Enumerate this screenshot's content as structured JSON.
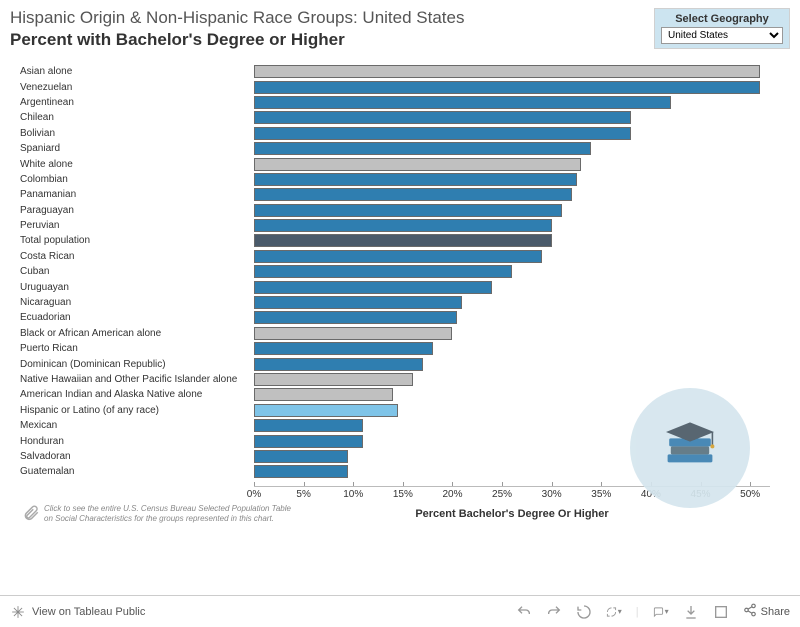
{
  "title_line1": "Hispanic Origin & Non-Hispanic Race Groups: United States",
  "title_line2": "Percent with Bachelor's Degree or Higher",
  "geography": {
    "label": "Select Geography",
    "selected": "United States"
  },
  "chart": {
    "type": "bar",
    "xlabel": "Percent Bachelor's Degree Or Higher",
    "xlim": [
      0,
      52
    ],
    "ticks": [
      0,
      5,
      10,
      15,
      20,
      25,
      30,
      35,
      40,
      45,
      50
    ],
    "tick_labels": [
      "0%",
      "5%",
      "10%",
      "15%",
      "20%",
      "25%",
      "30%",
      "35%",
      "40%",
      "45%",
      "50%"
    ],
    "bar_border": "#6a6a6a",
    "colors": {
      "hispanic": "#2f7eb0",
      "nonhispanic": "#c0c0c0",
      "total": "#4a5a6a",
      "hispanic_any": "#7fc4e8"
    },
    "background": "#ffffff",
    "label_fontsize": 10,
    "tick_fontsize": 10,
    "rows": [
      {
        "label": "Asian alone",
        "value": 51,
        "kind": "nonhispanic"
      },
      {
        "label": "Venezuelan",
        "value": 51,
        "kind": "hispanic"
      },
      {
        "label": "Argentinean",
        "value": 42,
        "kind": "hispanic"
      },
      {
        "label": "Chilean",
        "value": 38,
        "kind": "hispanic"
      },
      {
        "label": "Bolivian",
        "value": 38,
        "kind": "hispanic"
      },
      {
        "label": "Spaniard",
        "value": 34,
        "kind": "hispanic"
      },
      {
        "label": "White alone",
        "value": 33,
        "kind": "nonhispanic"
      },
      {
        "label": "Colombian",
        "value": 32.5,
        "kind": "hispanic"
      },
      {
        "label": "Panamanian",
        "value": 32,
        "kind": "hispanic"
      },
      {
        "label": "Paraguayan",
        "value": 31,
        "kind": "hispanic"
      },
      {
        "label": "Peruvian",
        "value": 30,
        "kind": "hispanic"
      },
      {
        "label": "Total population",
        "value": 30,
        "kind": "total"
      },
      {
        "label": "Costa Rican",
        "value": 29,
        "kind": "hispanic"
      },
      {
        "label": "Cuban",
        "value": 26,
        "kind": "hispanic"
      },
      {
        "label": "Uruguayan",
        "value": 24,
        "kind": "hispanic"
      },
      {
        "label": "Nicaraguan",
        "value": 21,
        "kind": "hispanic"
      },
      {
        "label": "Ecuadorian",
        "value": 20.5,
        "kind": "hispanic"
      },
      {
        "label": "Black or African American alone",
        "value": 20,
        "kind": "nonhispanic"
      },
      {
        "label": "Puerto Rican",
        "value": 18,
        "kind": "hispanic"
      },
      {
        "label": "Dominican (Dominican Republic)",
        "value": 17,
        "kind": "hispanic"
      },
      {
        "label": "Native Hawaiian and Other Pacific Islander alone",
        "value": 16,
        "kind": "nonhispanic"
      },
      {
        "label": "American Indian and Alaska Native alone",
        "value": 14,
        "kind": "nonhispanic"
      },
      {
        "label": "Hispanic or Latino (of any race)",
        "value": 14.5,
        "kind": "hispanic_any"
      },
      {
        "label": "Mexican",
        "value": 11,
        "kind": "hispanic"
      },
      {
        "label": "Honduran",
        "value": 11,
        "kind": "hispanic"
      },
      {
        "label": "Salvadoran",
        "value": 9.5,
        "kind": "hispanic"
      },
      {
        "label": "Guatemalan",
        "value": 9.5,
        "kind": "hispanic"
      }
    ]
  },
  "footnote": "Click to see the entire U.S. Census Bureau Selected Population Table on Social Characteristics for the groups represented in this chart.",
  "toolbar": {
    "view": "View on Tableau Public",
    "share": "Share"
  }
}
